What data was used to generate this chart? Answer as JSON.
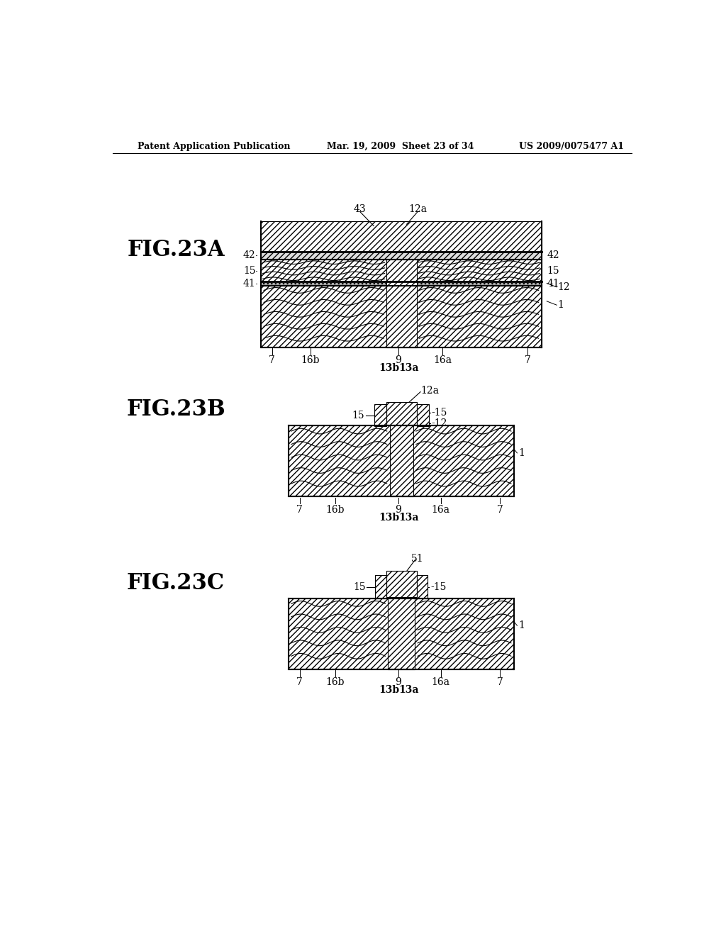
{
  "bg_color": "#ffffff",
  "header_left": "Patent Application Publication",
  "header_mid": "Mar. 19, 2009  Sheet 23 of 34",
  "header_right": "US 2009/0075477 A1",
  "fig_labels": [
    "FIG.23A",
    "FIG.23B",
    "FIG.23C"
  ]
}
